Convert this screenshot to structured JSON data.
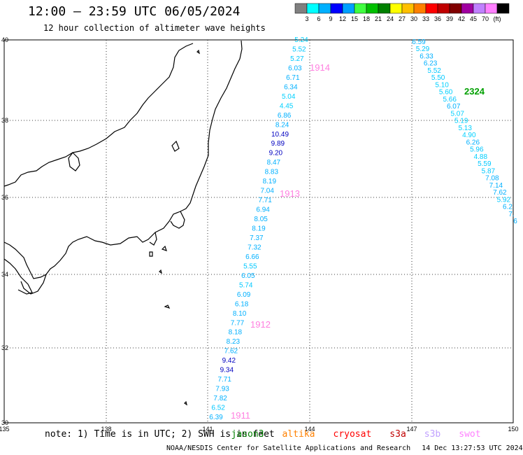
{
  "title": "12:00 – 23:59 UTC 06/05/2024",
  "subtitle": "12 hour collection of altimeter wave heights",
  "colorbar": {
    "colors": [
      "#808080",
      "#00ffff",
      "#00b0ff",
      "#0000ff",
      "#00a0ff",
      "#40ff40",
      "#00c000",
      "#008000",
      "#ffff00",
      "#ffc000",
      "#ff8000",
      "#ff0000",
      "#c00000",
      "#800000",
      "#a000a0",
      "#c080ff",
      "#ff80ff",
      "#000000"
    ],
    "labels": [
      "3",
      "6",
      "9",
      "12",
      "15",
      "18",
      "21",
      "24",
      "27",
      "30",
      "33",
      "36",
      "39",
      "42",
      "45",
      "70",
      "(ft)"
    ]
  },
  "axes": {
    "lon_ticks": [
      "135",
      "138",
      "141",
      "144",
      "147",
      "150"
    ],
    "lat_ticks": [
      "40",
      "38",
      "36",
      "34",
      "32",
      "30"
    ]
  },
  "tracks": [
    {
      "id": "1911",
      "label": "1911",
      "label_color": "#ff80e0",
      "start": [
        300,
        595
      ],
      "end": [
        423,
        57
      ],
      "label_at": [
        330,
        598
      ]
    },
    {
      "id": "1912",
      "label": "1912",
      "label_color": "#ff80e0",
      "label_at": [
        358,
        468
      ]
    },
    {
      "id": "1913",
      "label": "1913",
      "label_color": "#ff80e0",
      "label_at": [
        400,
        281
      ]
    },
    {
      "id": "1914",
      "label": "1914",
      "label_color": "#ff80e0",
      "label_at": [
        443,
        101
      ]
    },
    {
      "id": "2324",
      "label": "2324",
      "label_color": "#00a000",
      "start": [
        588,
        60
      ],
      "end": [
        737,
        317
      ],
      "label_at": [
        664,
        135
      ]
    }
  ],
  "track_a_values": [
    [
      "6.39",
      "#00b0ff"
    ],
    [
      "6.52",
      "#00c8ff"
    ],
    [
      "7.82",
      "#00b0ff"
    ],
    [
      "7.93",
      "#00b0ff"
    ],
    [
      "7.71",
      "#00b0ff"
    ],
    [
      "9.34",
      "#0000c0"
    ],
    [
      "9.42",
      "#0000c0"
    ],
    [
      "7.62",
      "#00b0ff"
    ],
    [
      "8.23",
      "#00b0ff"
    ],
    [
      "8.18",
      "#00b0ff"
    ],
    [
      "7.77",
      "#00b0ff"
    ],
    [
      "8.10",
      "#00b0ff"
    ],
    [
      "6.18",
      "#00b0ff"
    ],
    [
      "6.09",
      "#00b0ff"
    ],
    [
      "5.74",
      "#00c8ff"
    ],
    [
      "6.05",
      "#00b0ff"
    ],
    [
      "5.55",
      "#00c8ff"
    ],
    [
      "6.66",
      "#00b0ff"
    ],
    [
      "7.32",
      "#00b0ff"
    ],
    [
      "7.37",
      "#00b0ff"
    ],
    [
      "8.19",
      "#00b0ff"
    ],
    [
      "8.05",
      "#00b0ff"
    ],
    [
      "6.94",
      "#00b0ff"
    ],
    [
      "7.71",
      "#00b0ff"
    ],
    [
      "7.04",
      "#00b0ff"
    ],
    [
      "8.19",
      "#00b0ff"
    ],
    [
      "8.83",
      "#00b0ff"
    ],
    [
      "8.47",
      "#00b0ff"
    ],
    [
      "9.20",
      "#0000c0"
    ],
    [
      "9.89",
      "#0000c0"
    ],
    [
      "10.49",
      "#0000c0"
    ],
    [
      "8.24",
      "#00b0ff"
    ],
    [
      "6.86",
      "#00b0ff"
    ],
    [
      "4.45",
      "#00d0ff"
    ],
    [
      "5.04",
      "#00d0ff"
    ],
    [
      "6.34",
      "#00b0ff"
    ],
    [
      "6.71",
      "#00b0ff"
    ],
    [
      "6.03",
      "#00b0ff"
    ],
    [
      "5.27",
      "#00c8ff"
    ],
    [
      "5.52",
      "#00c8ff"
    ],
    [
      "5.24",
      "#00d0ff"
    ]
  ],
  "track_b_values": [
    [
      "6.59",
      "#00b0ff"
    ],
    [
      "5.29",
      "#00c8ff"
    ],
    [
      "6.33",
      "#00b0ff"
    ],
    [
      "6.23",
      "#00b0ff"
    ],
    [
      "5.52",
      "#00c8ff"
    ],
    [
      "5.50",
      "#00c8ff"
    ],
    [
      "5.10",
      "#00d0ff"
    ],
    [
      "5.60",
      "#00d0ff"
    ],
    [
      "5.66",
      "#00c8ff"
    ],
    [
      "6.07",
      "#00b0ff"
    ],
    [
      "5.07",
      "#00d0ff"
    ],
    [
      "5.19",
      "#00d0ff"
    ],
    [
      "5.13",
      "#00d0ff"
    ],
    [
      "4.90",
      "#00d0ff"
    ],
    [
      "6.26",
      "#00b0ff"
    ],
    [
      "5.96",
      "#00c8ff"
    ],
    [
      "4.88",
      "#00d0ff"
    ],
    [
      "5.59",
      "#00c8ff"
    ],
    [
      "5.87",
      "#00c8ff"
    ],
    [
      "7.08",
      "#00b0ff"
    ],
    [
      "7.14",
      "#00b0ff"
    ],
    [
      "7.62",
      "#00b0ff"
    ],
    [
      "5.92",
      "#00c8ff"
    ],
    [
      "6.2",
      "#00b0ff"
    ],
    [
      "7.",
      "#00b0ff"
    ],
    [
      "6",
      "#00b0ff"
    ]
  ],
  "note": {
    "prefix": "note: 1) Time is in UTC; 2) SWH is in feet",
    "missions": [
      {
        "name": "jason3",
        "color": "#008000"
      },
      {
        "name": "altika",
        "color": "#ff8000"
      },
      {
        "name": "cryosat",
        "color": "#ff0000"
      },
      {
        "name": "s3a",
        "color": "#c00000"
      },
      {
        "name": "s3b",
        "color": "#c0a0ff"
      },
      {
        "name": "swot",
        "color": "#ff80ff"
      }
    ]
  },
  "credit": {
    "org": "NOAA/NESDIS Center for Satellite Applications and Research",
    "timestamp": "14 Dec 13:27:53 UTC 2024"
  }
}
